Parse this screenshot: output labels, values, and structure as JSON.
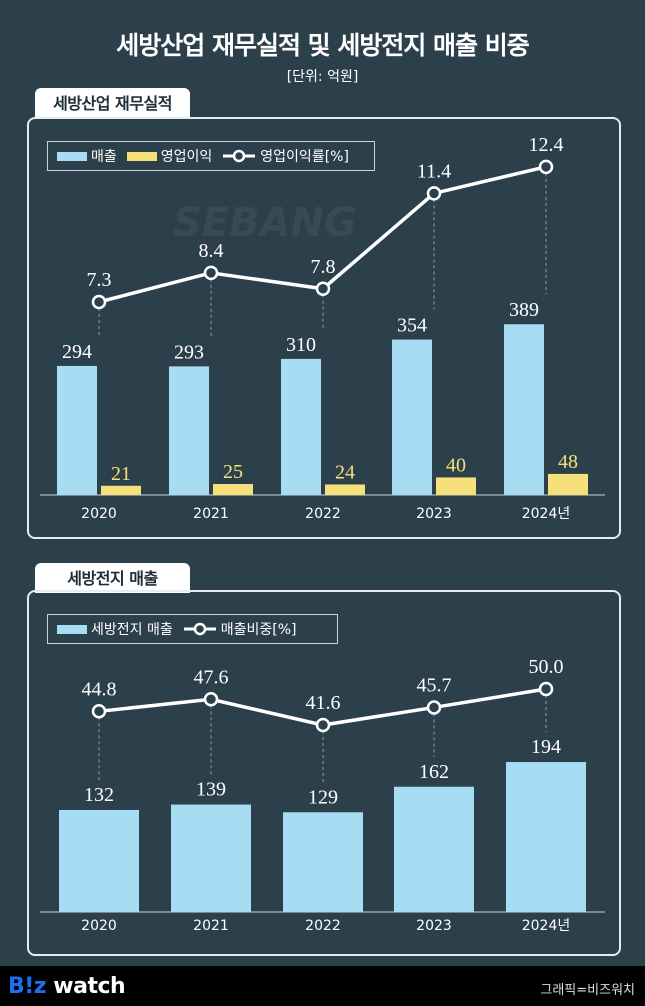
{
  "title": "세방산업 재무실적 및 세방전지 매출 비중",
  "subtitle": "[단위: 억원]",
  "watermark": "SEBANG",
  "footer": {
    "logo": "B!z watch",
    "credit": "그래픽=비즈워치"
  },
  "colors": {
    "background": "#2c404b",
    "sales_bar": "#a8dcf3",
    "profit_bar": "#f5e07a",
    "line": "#ffffff"
  },
  "chart_data": [
    {
      "type": "bar",
      "title": "세방산업 재무실적",
      "categories": [
        "2020",
        "2021",
        "2022",
        "2023",
        "2024년"
      ],
      "series": [
        {
          "name": "매출",
          "type": "bar",
          "values": [
            294,
            293,
            310,
            354,
            389
          ]
        },
        {
          "name": "영업이익",
          "type": "bar",
          "values": [
            21,
            25,
            24,
            40,
            48
          ]
        },
        {
          "name": "영업이익률[%]",
          "type": "line",
          "values": [
            7.3,
            8.4,
            7.8,
            11.4,
            12.4
          ]
        }
      ],
      "legend": "top-left",
      "grid": false
    },
    {
      "type": "bar",
      "title": "세방전지 매출",
      "categories": [
        "2020",
        "2021",
        "2022",
        "2023",
        "2024년"
      ],
      "series": [
        {
          "name": "세방전지 매출",
          "type": "bar",
          "values": [
            132,
            139,
            129,
            162,
            194
          ]
        },
        {
          "name": "매출비중[%]",
          "type": "line",
          "values": [
            44.8,
            47.6,
            41.6,
            45.7,
            50.0
          ]
        }
      ],
      "legend": "top-left",
      "grid": false
    }
  ]
}
